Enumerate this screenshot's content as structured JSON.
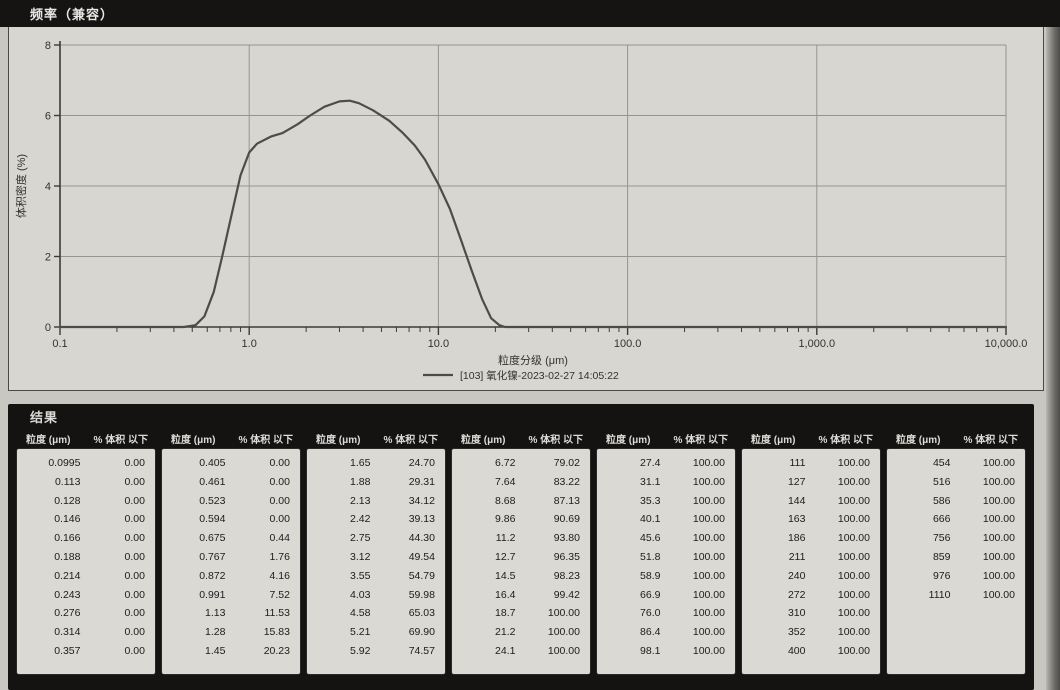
{
  "header": {
    "title": "频率（兼容）"
  },
  "colors": {
    "curve": "#4d4c49",
    "grid": "#96948f",
    "axis": "#3c3b39",
    "chart_text": "#33322f",
    "panel_bg": "#d8d6d1",
    "header_bar_bg": "#151413",
    "table_bg": "#141312",
    "cell_bg": "#dbd9d4"
  },
  "chart_data": {
    "type": "line",
    "title": "频率（兼容）",
    "xlabel": "粒度分级 (μm)",
    "ylabel": "体积密度 (%)",
    "x_scale": "log",
    "xlim": [
      0.1,
      10000
    ],
    "ylim": [
      0,
      8
    ],
    "y_ticks": [
      0,
      2,
      4,
      6,
      8
    ],
    "x_ticks": [
      {
        "value": 0.1,
        "label": "0.1"
      },
      {
        "value": 1,
        "label": "1.0"
      },
      {
        "value": 10,
        "label": "10.0"
      },
      {
        "value": 100,
        "label": "100.0"
      },
      {
        "value": 1000,
        "label": "1,000.0"
      },
      {
        "value": 10000,
        "label": "10,000.0"
      }
    ],
    "grid": true,
    "legend_position": "bottom",
    "series": [
      {
        "name": "[103] 氧化镍-2023-02-27 14:05:22",
        "points": [
          [
            0.1,
            0
          ],
          [
            0.3,
            0
          ],
          [
            0.45,
            0
          ],
          [
            0.52,
            0.05
          ],
          [
            0.58,
            0.3
          ],
          [
            0.65,
            1.0
          ],
          [
            0.72,
            2.0
          ],
          [
            0.8,
            3.1
          ],
          [
            0.9,
            4.3
          ],
          [
            1.0,
            4.95
          ],
          [
            1.1,
            5.2
          ],
          [
            1.3,
            5.4
          ],
          [
            1.5,
            5.5
          ],
          [
            1.8,
            5.75
          ],
          [
            2.1,
            6.0
          ],
          [
            2.5,
            6.25
          ],
          [
            3.0,
            6.4
          ],
          [
            3.4,
            6.42
          ],
          [
            3.8,
            6.35
          ],
          [
            4.5,
            6.15
          ],
          [
            5.5,
            5.85
          ],
          [
            6.5,
            5.5
          ],
          [
            7.5,
            5.15
          ],
          [
            8.5,
            4.75
          ],
          [
            10,
            4.05
          ],
          [
            11.5,
            3.35
          ],
          [
            13,
            2.55
          ],
          [
            15,
            1.6
          ],
          [
            17,
            0.8
          ],
          [
            19,
            0.25
          ],
          [
            21,
            0.05
          ],
          [
            22.5,
            0
          ],
          [
            100,
            0
          ],
          [
            1000,
            0
          ],
          [
            10000,
            0
          ]
        ]
      }
    ]
  },
  "results": {
    "title": "结果",
    "col_headers": [
      "粒度 (μm)",
      "% 体积 以下"
    ],
    "columns": [
      {
        "rows": [
          [
            "0.0995",
            "0.00"
          ],
          [
            "0.113",
            "0.00"
          ],
          [
            "0.128",
            "0.00"
          ],
          [
            "0.146",
            "0.00"
          ],
          [
            "0.166",
            "0.00"
          ],
          [
            "0.188",
            "0.00"
          ],
          [
            "0.214",
            "0.00"
          ],
          [
            "0.243",
            "0.00"
          ],
          [
            "0.276",
            "0.00"
          ],
          [
            "0.314",
            "0.00"
          ],
          [
            "0.357",
            "0.00"
          ]
        ]
      },
      {
        "rows": [
          [
            "0.405",
            "0.00"
          ],
          [
            "0.461",
            "0.00"
          ],
          [
            "0.523",
            "0.00"
          ],
          [
            "0.594",
            "0.00"
          ],
          [
            "0.675",
            "0.44"
          ],
          [
            "0.767",
            "1.76"
          ],
          [
            "0.872",
            "4.16"
          ],
          [
            "0.991",
            "7.52"
          ],
          [
            "1.13",
            "11.53"
          ],
          [
            "1.28",
            "15.83"
          ],
          [
            "1.45",
            "20.23"
          ]
        ]
      },
      {
        "rows": [
          [
            "1.65",
            "24.70"
          ],
          [
            "1.88",
            "29.31"
          ],
          [
            "2.13",
            "34.12"
          ],
          [
            "2.42",
            "39.13"
          ],
          [
            "2.75",
            "44.30"
          ],
          [
            "3.12",
            "49.54"
          ],
          [
            "3.55",
            "54.79"
          ],
          [
            "4.03",
            "59.98"
          ],
          [
            "4.58",
            "65.03"
          ],
          [
            "5.21",
            "69.90"
          ],
          [
            "5.92",
            "74.57"
          ]
        ]
      },
      {
        "rows": [
          [
            "6.72",
            "79.02"
          ],
          [
            "7.64",
            "83.22"
          ],
          [
            "8.68",
            "87.13"
          ],
          [
            "9.86",
            "90.69"
          ],
          [
            "11.2",
            "93.80"
          ],
          [
            "12.7",
            "96.35"
          ],
          [
            "14.5",
            "98.23"
          ],
          [
            "16.4",
            "99.42"
          ],
          [
            "18.7",
            "100.00"
          ],
          [
            "21.2",
            "100.00"
          ],
          [
            "24.1",
            "100.00"
          ]
        ]
      },
      {
        "rows": [
          [
            "27.4",
            "100.00"
          ],
          [
            "31.1",
            "100.00"
          ],
          [
            "35.3",
            "100.00"
          ],
          [
            "40.1",
            "100.00"
          ],
          [
            "45.6",
            "100.00"
          ],
          [
            "51.8",
            "100.00"
          ],
          [
            "58.9",
            "100.00"
          ],
          [
            "66.9",
            "100.00"
          ],
          [
            "76.0",
            "100.00"
          ],
          [
            "86.4",
            "100.00"
          ],
          [
            "98.1",
            "100.00"
          ]
        ]
      },
      {
        "rows": [
          [
            "111",
            "100.00"
          ],
          [
            "127",
            "100.00"
          ],
          [
            "144",
            "100.00"
          ],
          [
            "163",
            "100.00"
          ],
          [
            "186",
            "100.00"
          ],
          [
            "211",
            "100.00"
          ],
          [
            "240",
            "100.00"
          ],
          [
            "272",
            "100.00"
          ],
          [
            "310",
            "100.00"
          ],
          [
            "352",
            "100.00"
          ],
          [
            "400",
            "100.00"
          ]
        ]
      },
      {
        "rows": [
          [
            "454",
            "100.00"
          ],
          [
            "516",
            "100.00"
          ],
          [
            "586",
            "100.00"
          ],
          [
            "666",
            "100.00"
          ],
          [
            "756",
            "100.00"
          ],
          [
            "859",
            "100.00"
          ],
          [
            "976",
            "100.00"
          ],
          [
            "1110",
            "100.00"
          ]
        ]
      }
    ]
  }
}
